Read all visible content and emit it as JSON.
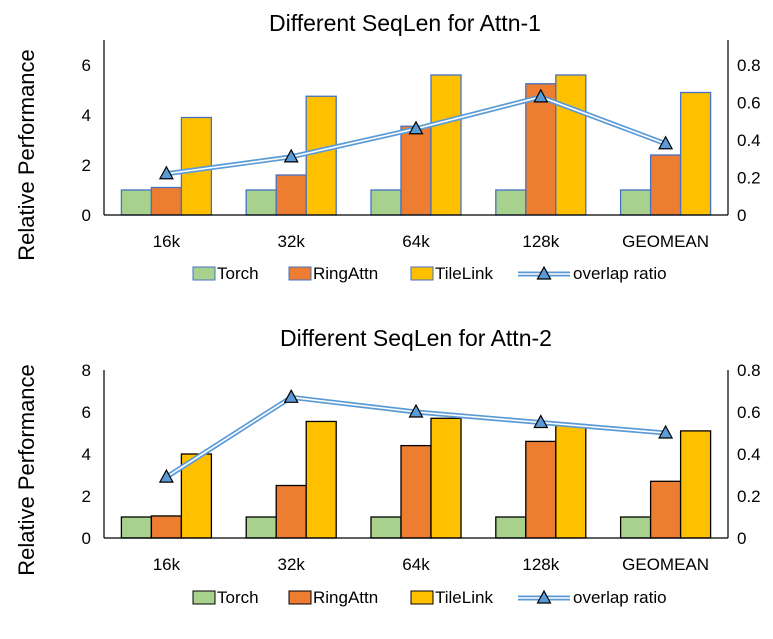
{
  "chart_data": [
    {
      "type": "bar",
      "title": "Different SeqLen for Attn-1",
      "ylabel": "Relative Performance",
      "xlabel": "",
      "categories": [
        "16k",
        "32k",
        "64k",
        "128k",
        "GEOMEAN"
      ],
      "ylim": [
        0,
        7
      ],
      "yticks": [
        "0",
        "2",
        "4",
        "6"
      ],
      "y2lim": [
        0,
        0.9333
      ],
      "y2ticks": [
        "0",
        "0.2",
        "0.4",
        "0.6",
        "0.8"
      ],
      "series": [
        {
          "name": "Torch",
          "values": [
            1.0,
            1.0,
            1.0,
            1.0,
            1.0
          ],
          "color": "#a9d18e"
        },
        {
          "name": "RingAttn",
          "values": [
            1.1,
            1.6,
            3.55,
            5.25,
            2.4
          ],
          "color": "#ed7d31"
        },
        {
          "name": "TileLink",
          "values": [
            3.9,
            4.75,
            5.6,
            5.6,
            4.9
          ],
          "color": "#ffc000"
        }
      ],
      "line": {
        "name": "overlap ratio",
        "values": [
          0.22,
          0.31,
          0.46,
          0.63,
          0.38
        ],
        "color": "#5b9bd5"
      },
      "legend": [
        "Torch",
        "RingAttn",
        "TileLink",
        "overlap ratio"
      ],
      "legend_position": "bottom",
      "bar_outline": "#4472c4"
    },
    {
      "type": "bar",
      "title": "Different SeqLen for Attn-2",
      "ylabel": "Relative Performance",
      "xlabel": "",
      "categories": [
        "16k",
        "32k",
        "64k",
        "128k",
        "GEOMEAN"
      ],
      "ylim": [
        0,
        8
      ],
      "yticks": [
        "0",
        "2",
        "4",
        "6",
        "8"
      ],
      "y2lim": [
        0,
        0.8
      ],
      "y2ticks": [
        "0",
        "0.2",
        "0.4",
        "0.6",
        "0.8"
      ],
      "series": [
        {
          "name": "Torch",
          "values": [
            1.0,
            1.0,
            1.0,
            1.0,
            1.0
          ],
          "color": "#a9d18e"
        },
        {
          "name": "RingAttn",
          "values": [
            1.05,
            2.5,
            4.4,
            4.6,
            2.7
          ],
          "color": "#ed7d31"
        },
        {
          "name": "TileLink",
          "values": [
            4.0,
            5.55,
            5.7,
            5.4,
            5.1
          ],
          "color": "#ffc000"
        }
      ],
      "line": {
        "name": "overlap ratio",
        "values": [
          0.29,
          0.67,
          0.6,
          0.55,
          0.5
        ],
        "color": "#5b9bd5"
      },
      "legend": [
        "Torch",
        "RingAttn",
        "TileLink",
        "overlap ratio"
      ],
      "legend_position": "bottom",
      "bar_outline": "#000000"
    }
  ]
}
